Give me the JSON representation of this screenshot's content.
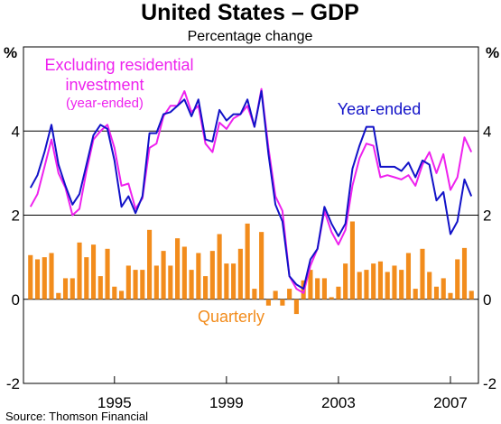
{
  "chart_data": {
    "type": "bar",
    "title": "United States – GDP",
    "subtitle": "Percentage change",
    "unit_left": "%",
    "unit_right": "%",
    "source": "Source: Thomson Financial",
    "ylim": [
      -2,
      6
    ],
    "y_ticks": [
      -2,
      0,
      2,
      4
    ],
    "x_ticks": [
      {
        "label": "1995",
        "x": 1995
      },
      {
        "label": "1999",
        "x": 1999
      },
      {
        "label": "2003",
        "x": 2003
      },
      {
        "label": "2007",
        "x": 2007
      }
    ],
    "x_range": [
      1991.75,
      2008.0
    ],
    "grid": true,
    "colors": {
      "quarterly": "#f28c1c",
      "year_ended": "#1212c8",
      "excl_res": "#ee22ee"
    },
    "annotations": {
      "excl_line1": "Excluding residential",
      "excl_line2": "investment",
      "excl_line3": "(year-ended)",
      "year_ended": "Year-ended",
      "quarterly": "Quarterly"
    },
    "quarters": [
      "1992Q1",
      "1992Q2",
      "1992Q3",
      "1992Q4",
      "1993Q1",
      "1993Q2",
      "1993Q3",
      "1993Q4",
      "1994Q1",
      "1994Q2",
      "1994Q3",
      "1994Q4",
      "1995Q1",
      "1995Q2",
      "1995Q3",
      "1995Q4",
      "1996Q1",
      "1996Q2",
      "1996Q3",
      "1996Q4",
      "1997Q1",
      "1997Q2",
      "1997Q3",
      "1997Q4",
      "1998Q1",
      "1998Q2",
      "1998Q3",
      "1998Q4",
      "1999Q1",
      "1999Q2",
      "1999Q3",
      "1999Q4",
      "2000Q1",
      "2000Q2",
      "2000Q3",
      "2000Q4",
      "2001Q1",
      "2001Q2",
      "2001Q3",
      "2001Q4",
      "2002Q1",
      "2002Q2",
      "2002Q3",
      "2002Q4",
      "2003Q1",
      "2003Q2",
      "2003Q3",
      "2003Q4",
      "2004Q1",
      "2004Q2",
      "2004Q3",
      "2004Q4",
      "2005Q1",
      "2005Q2",
      "2005Q3",
      "2005Q4",
      "2006Q1",
      "2006Q2",
      "2006Q3",
      "2006Q4",
      "2007Q1",
      "2007Q2",
      "2007Q3",
      "2007Q4"
    ],
    "series": [
      {
        "name": "Quarterly",
        "kind": "bar",
        "values": [
          1.05,
          0.95,
          1.0,
          1.1,
          0.15,
          0.5,
          0.5,
          1.35,
          1.0,
          1.3,
          0.55,
          1.2,
          0.3,
          0.2,
          0.8,
          0.7,
          0.7,
          1.65,
          0.8,
          1.15,
          0.8,
          1.45,
          1.25,
          0.7,
          1.1,
          0.55,
          1.15,
          1.55,
          0.85,
          0.85,
          1.2,
          1.8,
          0.25,
          1.6,
          -0.15,
          0.2,
          -0.15,
          0.25,
          -0.35,
          0.45,
          0.7,
          0.5,
          0.5,
          0.05,
          0.3,
          0.85,
          1.85,
          0.65,
          0.7,
          0.85,
          0.9,
          0.65,
          0.8,
          0.7,
          1.1,
          0.25,
          1.2,
          0.65,
          0.3,
          0.5,
          0.15,
          0.95,
          1.22,
          0.2
        ]
      },
      {
        "name": "Year-ended",
        "kind": "line",
        "values": [
          2.65,
          2.95,
          3.5,
          4.15,
          3.2,
          2.7,
          2.25,
          2.5,
          3.2,
          3.9,
          4.15,
          4.05,
          3.3,
          2.2,
          2.45,
          2.05,
          2.45,
          3.95,
          3.95,
          4.4,
          4.45,
          4.6,
          4.75,
          4.35,
          4.75,
          3.8,
          3.75,
          4.5,
          4.25,
          4.4,
          4.4,
          4.75,
          4.1,
          4.95,
          3.45,
          2.25,
          1.85,
          0.55,
          0.35,
          0.25,
          0.95,
          1.2,
          2.2,
          1.8,
          1.5,
          1.8,
          3.1,
          3.65,
          4.1,
          4.1,
          3.15,
          3.15,
          3.15,
          3.05,
          3.25,
          2.9,
          3.3,
          3.2,
          2.35,
          2.55,
          1.55,
          1.85,
          2.85,
          2.45
        ]
      },
      {
        "name": "Excluding residential investment (year-ended)",
        "kind": "line",
        "values": [
          2.2,
          2.5,
          3.15,
          3.8,
          3.0,
          2.65,
          2.0,
          2.15,
          3.05,
          3.8,
          4.0,
          4.15,
          3.6,
          2.7,
          2.75,
          2.15,
          2.4,
          3.6,
          3.7,
          4.35,
          4.6,
          4.6,
          4.95,
          4.45,
          4.6,
          3.7,
          3.5,
          4.2,
          4.05,
          4.3,
          4.4,
          4.6,
          4.1,
          5.0,
          3.6,
          2.45,
          2.1,
          0.55,
          0.25,
          0.15,
          0.8,
          1.2,
          2.1,
          1.6,
          1.3,
          1.65,
          2.7,
          3.35,
          3.7,
          3.65,
          2.9,
          2.95,
          2.9,
          2.85,
          2.95,
          2.7,
          3.2,
          3.5,
          3.0,
          3.45,
          2.6,
          2.9,
          3.85,
          3.5
        ]
      }
    ]
  }
}
